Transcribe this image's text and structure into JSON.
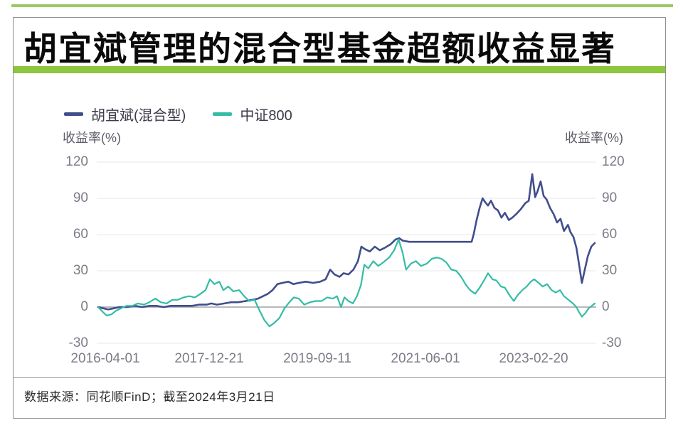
{
  "page": {
    "title": "胡宜斌管理的混合型基金超额收益显著",
    "source_note": "数据来源：同花顺FinD；截至2024年3月21日"
  },
  "axes": {
    "left_title": "收益率(%)",
    "right_title": "收益率(%)"
  },
  "colors": {
    "accent_green": "#8dc63f",
    "grid_line": "#e7e7ec",
    "zero_line": "#aeaeb4",
    "fund_line": "#404e8c",
    "index_line": "#35bca6"
  },
  "chart_data": {
    "type": "line",
    "title": "",
    "xlabel": "",
    "ylabel_left": "收益率(%)",
    "ylabel_right": "收益率(%)",
    "ylim": [
      -30,
      120
    ],
    "ytick_labels": [
      120,
      90,
      60,
      30,
      0,
      -30
    ],
    "xtick_labels": [
      "2016-04-01",
      "2017-12-21",
      "2019-09-11",
      "2021-06-01",
      "2023-02-20"
    ],
    "x_start": "2016-04-01",
    "x_end": "2024-03-21",
    "grid": "horizontal",
    "legend_position": "top-left",
    "series": [
      {
        "name": "胡宜斌(混合型)",
        "color": "#404e8c",
        "width": 2.6,
        "points": [
          [
            0,
            0
          ],
          [
            0.01,
            -1
          ],
          [
            0.02,
            -2
          ],
          [
            0.032,
            -1
          ],
          [
            0.043,
            0
          ],
          [
            0.057,
            0
          ],
          [
            0.074,
            1
          ],
          [
            0.089,
            0
          ],
          [
            0.103,
            1
          ],
          [
            0.117,
            1
          ],
          [
            0.132,
            0
          ],
          [
            0.146,
            1
          ],
          [
            0.16,
            1
          ],
          [
            0.175,
            1
          ],
          [
            0.189,
            1
          ],
          [
            0.203,
            2
          ],
          [
            0.218,
            2
          ],
          [
            0.228,
            3
          ],
          [
            0.239,
            2
          ],
          [
            0.254,
            3
          ],
          [
            0.268,
            4
          ],
          [
            0.282,
            4
          ],
          [
            0.297,
            5
          ],
          [
            0.311,
            6
          ],
          [
            0.322,
            7
          ],
          [
            0.332,
            9
          ],
          [
            0.342,
            11
          ],
          [
            0.351,
            14
          ],
          [
            0.361,
            19
          ],
          [
            0.371,
            20
          ],
          [
            0.383,
            21
          ],
          [
            0.393,
            19
          ],
          [
            0.404,
            20
          ],
          [
            0.418,
            21
          ],
          [
            0.433,
            20
          ],
          [
            0.447,
            21
          ],
          [
            0.458,
            23
          ],
          [
            0.467,
            31
          ],
          [
            0.476,
            27
          ],
          [
            0.486,
            25
          ],
          [
            0.494,
            28
          ],
          [
            0.504,
            27
          ],
          [
            0.514,
            31
          ],
          [
            0.523,
            38
          ],
          [
            0.53,
            50
          ],
          [
            0.537,
            48
          ],
          [
            0.547,
            46
          ],
          [
            0.557,
            50
          ],
          [
            0.567,
            47
          ],
          [
            0.577,
            49
          ],
          [
            0.589,
            52
          ],
          [
            0.599,
            56
          ],
          [
            0.606,
            57
          ],
          [
            0.613,
            55
          ],
          [
            0.626,
            54
          ],
          [
            0.648,
            54
          ],
          [
            0.676,
            54
          ],
          [
            0.705,
            54
          ],
          [
            0.733,
            54
          ],
          [
            0.752,
            54
          ],
          [
            0.756,
            60
          ],
          [
            0.762,
            72
          ],
          [
            0.768,
            82
          ],
          [
            0.774,
            90
          ],
          [
            0.779,
            87
          ],
          [
            0.785,
            84
          ],
          [
            0.791,
            88
          ],
          [
            0.798,
            82
          ],
          [
            0.805,
            80
          ],
          [
            0.812,
            74
          ],
          [
            0.819,
            78
          ],
          [
            0.827,
            72
          ],
          [
            0.834,
            74
          ],
          [
            0.842,
            77
          ],
          [
            0.851,
            81
          ],
          [
            0.86,
            86
          ],
          [
            0.867,
            88
          ],
          [
            0.874,
            110
          ],
          [
            0.88,
            91
          ],
          [
            0.885,
            96
          ],
          [
            0.891,
            104
          ],
          [
            0.897,
            92
          ],
          [
            0.903,
            89
          ],
          [
            0.91,
            82
          ],
          [
            0.917,
            77
          ],
          [
            0.924,
            70
          ],
          [
            0.931,
            73
          ],
          [
            0.938,
            63
          ],
          [
            0.946,
            68
          ],
          [
            0.951,
            62
          ],
          [
            0.957,
            58
          ],
          [
            0.963,
            49
          ],
          [
            0.968,
            36
          ],
          [
            0.974,
            20
          ],
          [
            0.98,
            31
          ],
          [
            0.986,
            42
          ],
          [
            0.993,
            50
          ],
          [
            1,
            53
          ]
        ]
      },
      {
        "name": "中证800",
        "color": "#35bca6",
        "width": 2.2,
        "points": [
          [
            0,
            0
          ],
          [
            0.009,
            -4
          ],
          [
            0.017,
            -7
          ],
          [
            0.027,
            -6
          ],
          [
            0.036,
            -3
          ],
          [
            0.046,
            -1
          ],
          [
            0.057,
            1
          ],
          [
            0.069,
            1
          ],
          [
            0.08,
            3
          ],
          [
            0.092,
            2
          ],
          [
            0.103,
            4
          ],
          [
            0.115,
            7
          ],
          [
            0.126,
            4
          ],
          [
            0.138,
            3
          ],
          [
            0.149,
            6
          ],
          [
            0.16,
            6
          ],
          [
            0.172,
            8
          ],
          [
            0.183,
            9
          ],
          [
            0.195,
            8
          ],
          [
            0.206,
            11
          ],
          [
            0.216,
            14
          ],
          [
            0.225,
            23
          ],
          [
            0.234,
            19
          ],
          [
            0.244,
            21
          ],
          [
            0.252,
            14
          ],
          [
            0.262,
            17
          ],
          [
            0.272,
            13
          ],
          [
            0.284,
            14
          ],
          [
            0.294,
            9
          ],
          [
            0.304,
            5
          ],
          [
            0.315,
            6
          ],
          [
            0.325,
            -3
          ],
          [
            0.335,
            -11
          ],
          [
            0.345,
            -16
          ],
          [
            0.355,
            -13
          ],
          [
            0.365,
            -9
          ],
          [
            0.375,
            -1
          ],
          [
            0.385,
            4
          ],
          [
            0.394,
            8
          ],
          [
            0.404,
            7
          ],
          [
            0.415,
            2
          ],
          [
            0.427,
            4
          ],
          [
            0.438,
            5
          ],
          [
            0.45,
            5
          ],
          [
            0.461,
            8
          ],
          [
            0.473,
            7
          ],
          [
            0.481,
            9
          ],
          [
            0.489,
            0
          ],
          [
            0.496,
            8
          ],
          [
            0.504,
            5
          ],
          [
            0.513,
            3
          ],
          [
            0.521,
            9
          ],
          [
            0.529,
            18
          ],
          [
            0.536,
            35
          ],
          [
            0.544,
            32
          ],
          [
            0.554,
            38
          ],
          [
            0.564,
            34
          ],
          [
            0.574,
            37
          ],
          [
            0.586,
            41
          ],
          [
            0.596,
            47
          ],
          [
            0.605,
            56
          ],
          [
            0.613,
            45
          ],
          [
            0.62,
            31
          ],
          [
            0.63,
            36
          ],
          [
            0.64,
            38
          ],
          [
            0.65,
            34
          ],
          [
            0.662,
            36
          ],
          [
            0.672,
            40
          ],
          [
            0.682,
            41
          ],
          [
            0.691,
            40
          ],
          [
            0.701,
            37
          ],
          [
            0.711,
            31
          ],
          [
            0.721,
            30
          ],
          [
            0.731,
            25
          ],
          [
            0.741,
            18
          ],
          [
            0.749,
            14
          ],
          [
            0.759,
            11
          ],
          [
            0.768,
            16
          ],
          [
            0.777,
            22
          ],
          [
            0.785,
            28
          ],
          [
            0.794,
            23
          ],
          [
            0.802,
            22
          ],
          [
            0.811,
            17
          ],
          [
            0.819,
            16
          ],
          [
            0.828,
            10
          ],
          [
            0.837,
            5
          ],
          [
            0.845,
            10
          ],
          [
            0.854,
            14
          ],
          [
            0.863,
            17
          ],
          [
            0.871,
            21
          ],
          [
            0.878,
            23
          ],
          [
            0.887,
            20
          ],
          [
            0.895,
            17
          ],
          [
            0.904,
            19
          ],
          [
            0.913,
            14
          ],
          [
            0.921,
            12
          ],
          [
            0.93,
            14
          ],
          [
            0.938,
            9
          ],
          [
            0.947,
            6
          ],
          [
            0.956,
            3
          ],
          [
            0.963,
            0
          ],
          [
            0.968,
            -4
          ],
          [
            0.974,
            -8
          ],
          [
            0.981,
            -5
          ],
          [
            0.988,
            -1
          ],
          [
            0.994,
            1
          ],
          [
            1,
            3
          ]
        ]
      }
    ]
  }
}
